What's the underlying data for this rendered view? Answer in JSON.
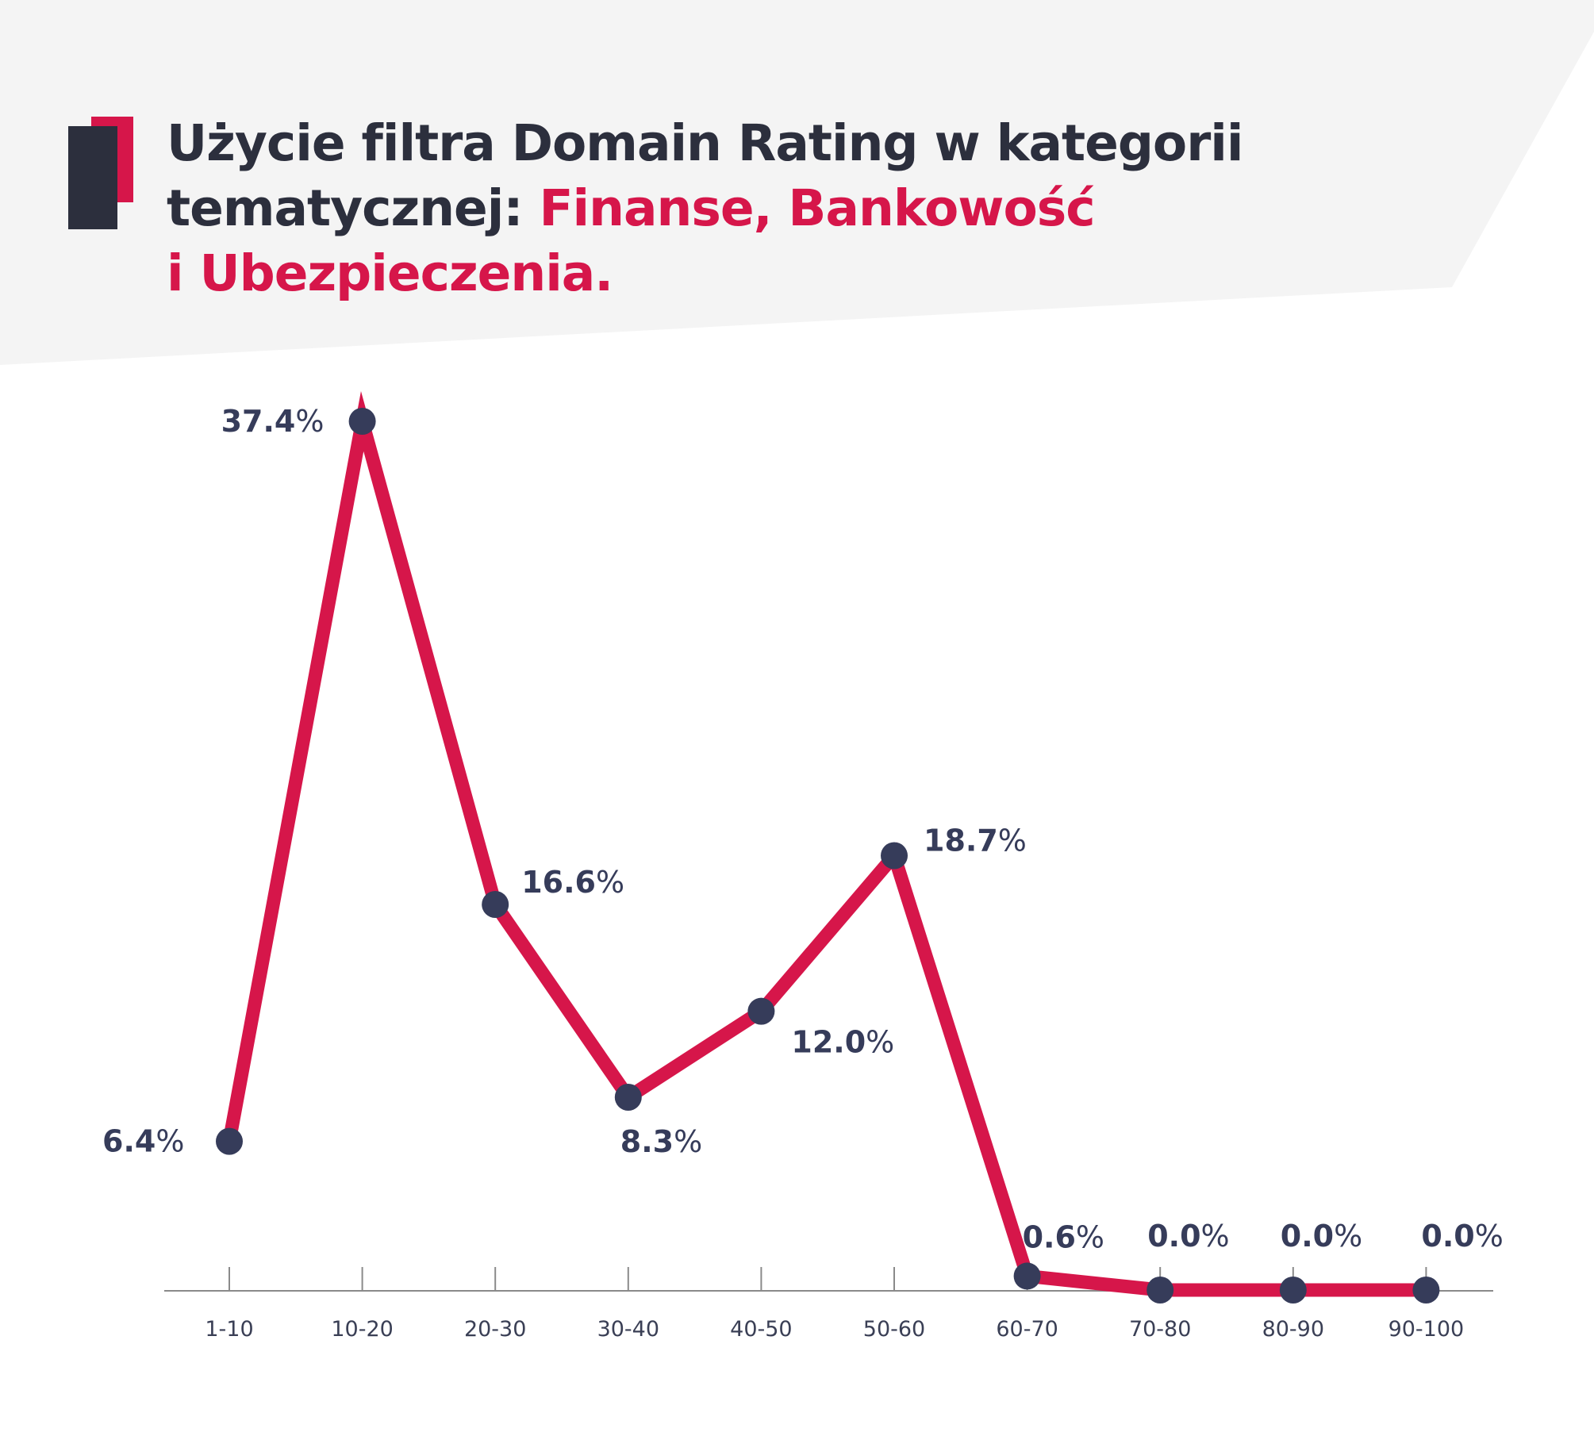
{
  "title": {
    "line1": "Użycie filtra Domain Rating w kategorii",
    "line2_plain": "tematycznej: ",
    "line2_accent": "Finanse, Bankowość",
    "line3_accent": "i Ubezpieczenia."
  },
  "colors": {
    "line": "#d6164a",
    "marker": "#363c5a",
    "title": "#2c2f3d",
    "accent": "#d6164a",
    "background_band": "#f4f4f4",
    "axis": "#8a8a8a"
  },
  "chart_data": {
    "type": "line",
    "categories": [
      "1-10",
      "10-20",
      "20-30",
      "30-40",
      "40-50",
      "50-60",
      "60-70",
      "70-80",
      "80-90",
      "90-100"
    ],
    "values": [
      6.4,
      37.4,
      16.6,
      8.3,
      12.0,
      18.7,
      0.6,
      0.0,
      0.0,
      0.0
    ],
    "data_labels": [
      "6.4",
      "37.4",
      "16.6",
      "8.3",
      "12.0",
      "18.7",
      "0.6",
      "0.0",
      "0.0",
      "0.0"
    ],
    "unit": "%",
    "ylim": [
      0,
      37.4
    ],
    "grid": false,
    "legend": "none"
  }
}
